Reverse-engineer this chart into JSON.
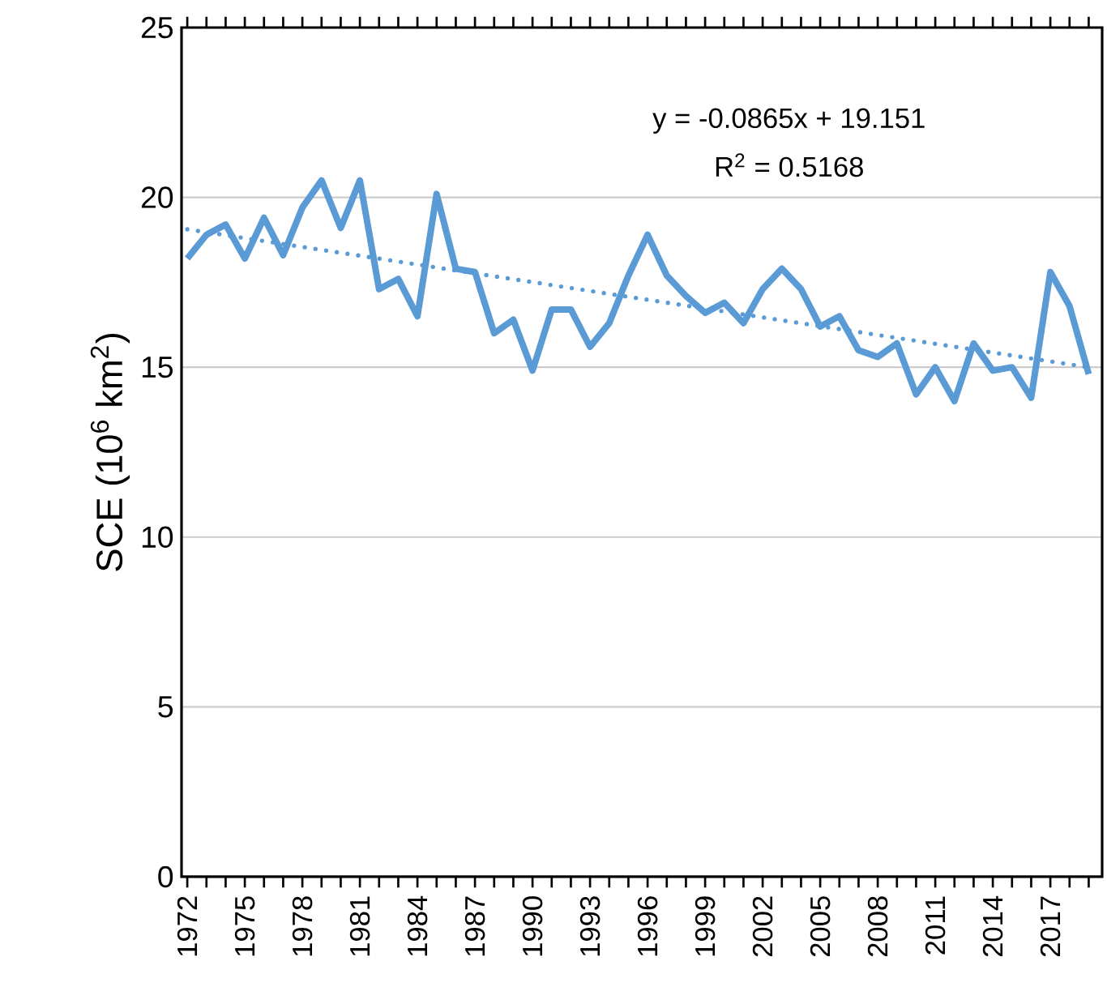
{
  "chart_data": {
    "type": "line",
    "ylabel": "SCE (10$^{6}$ km$^{2}$)",
    "annotations": [
      "y = -0.0865x + 19.151",
      "R$^{2}$ = 0.5168"
    ],
    "x": [
      1972,
      1973,
      1974,
      1975,
      1976,
      1977,
      1978,
      1979,
      1980,
      1981,
      1982,
      1983,
      1984,
      1985,
      1986,
      1987,
      1988,
      1989,
      1990,
      1991,
      1992,
      1993,
      1994,
      1995,
      1996,
      1997,
      1998,
      1999,
      2000,
      2001,
      2002,
      2003,
      2004,
      2005,
      2006,
      2007,
      2008,
      2009,
      2010,
      2011,
      2012,
      2013,
      2014,
      2015,
      2016,
      2017,
      2018,
      2019
    ],
    "series": [
      {
        "color": "#5b9bd5",
        "line_style": "solid",
        "values": [
          18.2,
          18.9,
          19.2,
          18.2,
          19.4,
          18.3,
          19.7,
          20.5,
          19.1,
          20.5,
          17.3,
          17.6,
          16.5,
          20.1,
          17.9,
          17.8,
          16.0,
          16.4,
          14.9,
          16.7,
          16.7,
          15.6,
          16.3,
          17.7,
          18.9,
          17.7,
          17.1,
          16.6,
          16.9,
          16.3,
          17.3,
          17.9,
          17.3,
          16.2,
          16.5,
          15.5,
          15.3,
          15.7,
          14.2,
          15.0,
          14.0,
          15.7,
          14.9,
          15.0,
          14.1,
          17.8,
          16.8,
          14.8
        ]
      },
      {
        "type": "line",
        "color": "#5b9bd5",
        "line_style": "dotted",
        "x": [
          1972,
          2019
        ],
        "values": [
          19.06,
          15.0
        ]
      }
    ],
    "marker": "none",
    "xlim": [
      1971.7,
      2019.7
    ],
    "xticks": [
      1972,
      {
        "value": 1973,
        "label": null
      },
      {
        "value": 1974,
        "label": null
      },
      1975,
      {
        "value": 1976,
        "label": null
      },
      {
        "value": 1977,
        "label": null
      },
      1978,
      {
        "value": 1979,
        "label": null
      },
      {
        "value": 1980,
        "label": null
      },
      1981,
      {
        "value": 1982,
        "label": null
      },
      {
        "value": 1983,
        "label": null
      },
      1984,
      {
        "value": 1985,
        "label": null
      },
      {
        "value": 1986,
        "label": null
      },
      1987,
      {
        "value": 1988,
        "label": null
      },
      {
        "value": 1989,
        "label": null
      },
      1990,
      {
        "value": 1991,
        "label": null
      },
      {
        "value": 1992,
        "label": null
      },
      1993,
      {
        "value": 1994,
        "label": null
      },
      {
        "value": 1995,
        "label": null
      },
      1996,
      {
        "value": 1997,
        "label": null
      },
      {
        "value": 1998,
        "label": null
      },
      1999,
      {
        "value": 2000,
        "label": null
      },
      {
        "value": 2001,
        "label": null
      },
      2002,
      {
        "value": 2003,
        "label": null
      },
      {
        "value": 2004,
        "label": null
      },
      2005,
      {
        "value": 2006,
        "label": null
      },
      {
        "value": 2007,
        "label": null
      },
      2008,
      {
        "value": 2009,
        "label": null
      },
      {
        "value": 2010,
        "label": null
      },
      2011,
      {
        "value": 2012,
        "label": null
      },
      {
        "value": 2013,
        "label": null
      },
      2014,
      {
        "value": 2015,
        "label": null
      },
      {
        "value": 2016,
        "label": null
      },
      2017,
      {
        "value": 2018,
        "label": null
      },
      {
        "value": 2019,
        "label": null
      }
    ],
    "ylim": [
      0,
      25
    ],
    "yticks": [
      0,
      5,
      10,
      15,
      20,
      25
    ],
    "grid": "y"
  }
}
